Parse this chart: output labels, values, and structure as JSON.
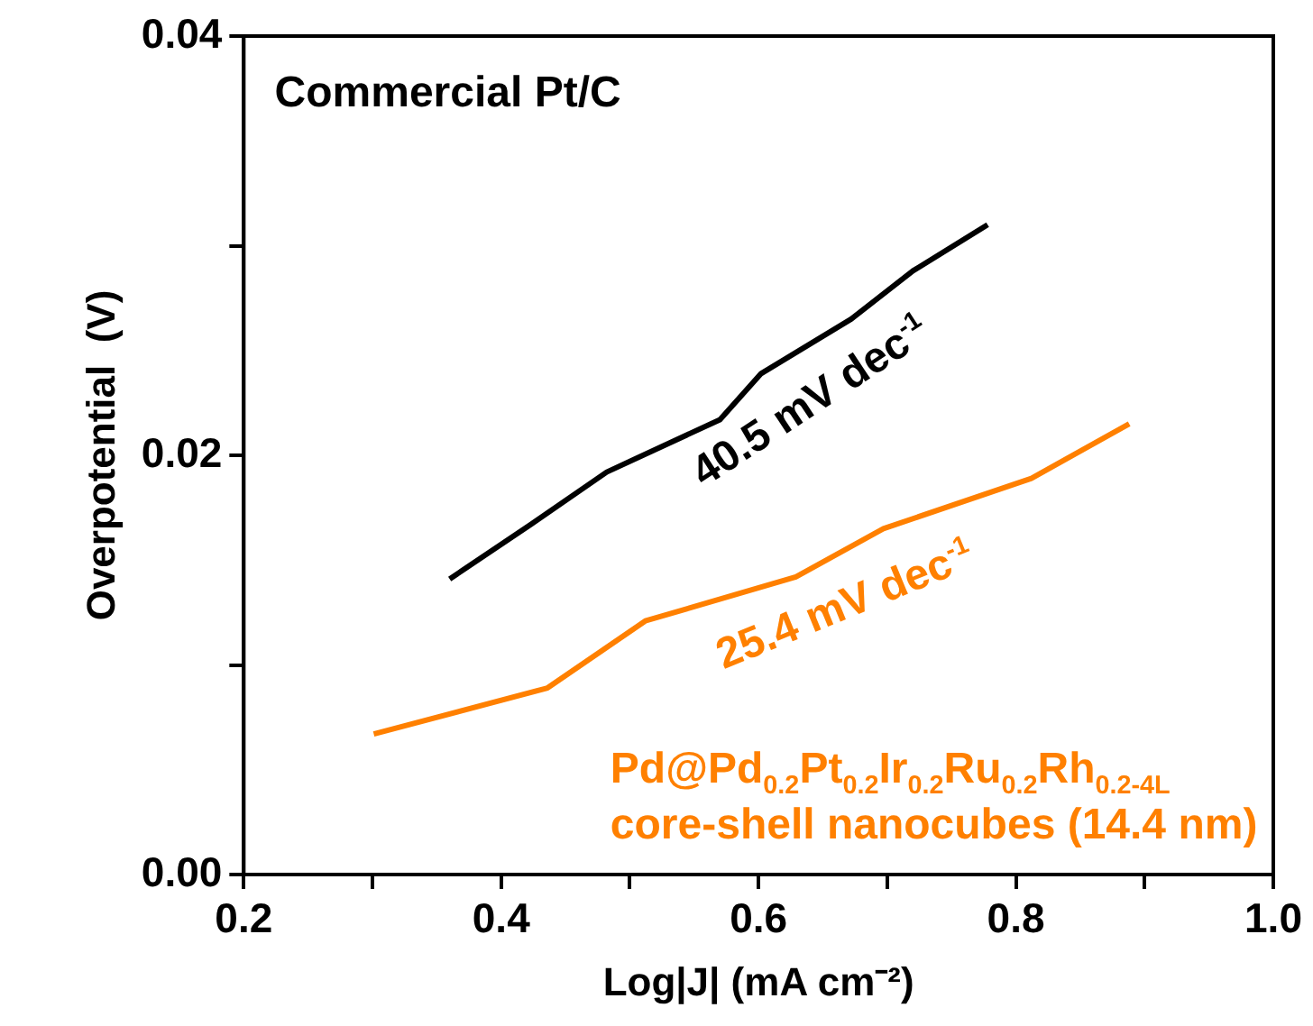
{
  "chart_data": {
    "type": "line",
    "xlabel": "Log|J| (mA cm⁻²)",
    "ylabel": "Overpotential  (V)",
    "xlim": [
      0.2,
      1.0
    ],
    "xticks": [
      0.2,
      {
        "value": 0.3,
        "label": null
      },
      0.4,
      {
        "value": 0.5,
        "label": null
      },
      0.6,
      {
        "value": 0.7,
        "label": null
      },
      0.8,
      {
        "value": 0.9,
        "label": null
      },
      {
        "value": 1.0,
        "label": "1.0"
      }
    ],
    "ylim": [
      0,
      0.04
    ],
    "yticks": [
      {
        "value": 0,
        "label": "0.00"
      },
      {
        "value": 0.01,
        "label": null
      },
      {
        "value": 0.02,
        "label": "0.02"
      },
      {
        "value": 0.03,
        "label": null
      },
      {
        "value": 0.04,
        "label": "0.04"
      }
    ],
    "grid": false,
    "legend": false,
    "marker": "none",
    "line_style": "solid",
    "series": [
      {
        "name": "Commercial Pt/C",
        "color": "#000000",
        "x": [
          0.36,
          0.423,
          0.482,
          0.57,
          0.602,
          0.672,
          0.72,
          0.778
        ],
        "values": [
          0.0141,
          0.0167,
          0.0192,
          0.0217,
          0.0239,
          0.0265,
          0.0288,
          0.031
        ]
      },
      {
        "name": "Pd@Pd$_{0.2}$Pt$_{0.2}$Ir$_{0.2}$Ru$_{0.2}$Rh$_{0.2-4L}$ core-shell nanocubes (14.4 nm)",
        "color": "#ff8000",
        "x": [
          0.301,
          0.436,
          0.512,
          0.629,
          0.697,
          0.812,
          0.888
        ],
        "values": [
          0.0067,
          0.0089,
          0.0121,
          0.0142,
          0.0165,
          0.0189,
          0.0215
        ]
      }
    ],
    "annotations": [
      "40.5 mV dec$^{-1}$",
      "25.4 mV dec$^{-1}$"
    ]
  }
}
